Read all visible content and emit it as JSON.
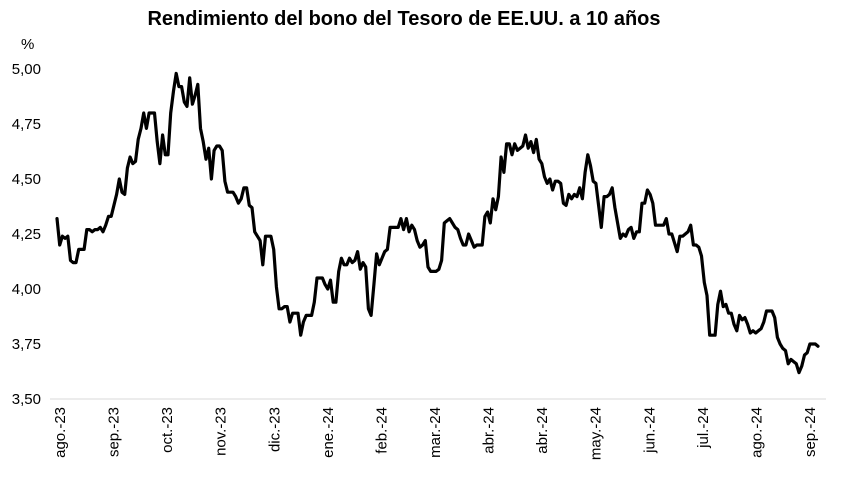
{
  "chart_data": {
    "type": "line",
    "title": "Rendimiento del bono del Tesoro de EE.UU. a 10 años",
    "ylabel": "%",
    "xlabel": "",
    "ylim": [
      3.5,
      5.0
    ],
    "yticks": [
      "3,50",
      "3,75",
      "4,00",
      "4,25",
      "4,50",
      "4,75",
      "5,00"
    ],
    "ytick_values": [
      3.5,
      3.75,
      4.0,
      4.25,
      4.5,
      4.75,
      5.0
    ],
    "xtick_labels": [
      "ago.-23",
      "sep.-23",
      "oct.-23",
      "nov.-23",
      "dic.-23",
      "ene.-24",
      "feb.-24",
      "mar.-24",
      "abr.-24",
      "abr.-24",
      "may.-24",
      "jun.-24",
      "jul.-24",
      "ago.-24",
      "sep.-24"
    ],
    "grid": false,
    "legend": "none",
    "line_color": "#000000",
    "series": [
      {
        "values": [
          4.32,
          4.2,
          4.24,
          4.23,
          4.24,
          4.13,
          4.12,
          4.12,
          4.18,
          4.18,
          4.18,
          4.27,
          4.27,
          4.26,
          4.27,
          4.27,
          4.28,
          4.26,
          4.29,
          4.33,
          4.33,
          4.38,
          4.43,
          4.5,
          4.44,
          4.43,
          4.55,
          4.6,
          4.57,
          4.58,
          4.68,
          4.73,
          4.8,
          4.73,
          4.8,
          4.8,
          4.8,
          4.67,
          4.57,
          4.7,
          4.61,
          4.61,
          4.8,
          4.9,
          4.98,
          4.92,
          4.92,
          4.85,
          4.83,
          4.96,
          4.84,
          4.88,
          4.93,
          4.73,
          4.67,
          4.59,
          4.64,
          4.5,
          4.63,
          4.65,
          4.65,
          4.63,
          4.49,
          4.44,
          4.44,
          4.44,
          4.42,
          4.39,
          4.41,
          4.46,
          4.46,
          4.38,
          4.37,
          4.26,
          4.24,
          4.22,
          4.11,
          4.24,
          4.24,
          4.24,
          4.18,
          4.01,
          3.91,
          3.91,
          3.92,
          3.92,
          3.85,
          3.89,
          3.89,
          3.89,
          3.79,
          3.85,
          3.88,
          3.88,
          3.88,
          3.94,
          4.05,
          4.05,
          4.05,
          4.02,
          4.0,
          4.04,
          3.94,
          3.94,
          4.08,
          4.14,
          4.11,
          4.11,
          4.14,
          4.12,
          4.13,
          4.17,
          4.09,
          4.12,
          4.1,
          3.91,
          3.88,
          4.02,
          4.16,
          4.11,
          4.14,
          4.17,
          4.18,
          4.28,
          4.28,
          4.28,
          4.28,
          4.32,
          4.27,
          4.32,
          4.26,
          4.29,
          4.27,
          4.22,
          4.19,
          4.2,
          4.22,
          4.1,
          4.08,
          4.08,
          4.08,
          4.09,
          4.13,
          4.3,
          4.31,
          4.32,
          4.3,
          4.28,
          4.27,
          4.23,
          4.2,
          4.2,
          4.25,
          4.22,
          4.19,
          4.2,
          4.2,
          4.2,
          4.33,
          4.35,
          4.3,
          4.41,
          4.36,
          4.42,
          4.6,
          4.53,
          4.66,
          4.66,
          4.61,
          4.66,
          4.63,
          4.64,
          4.65,
          4.7,
          4.64,
          4.67,
          4.62,
          4.68,
          4.59,
          4.57,
          4.51,
          4.48,
          4.5,
          4.45,
          4.49,
          4.49,
          4.48,
          4.39,
          4.38,
          4.43,
          4.41,
          4.43,
          4.42,
          4.46,
          4.41,
          4.53,
          4.61,
          4.56,
          4.49,
          4.48,
          4.38,
          4.28,
          4.42,
          4.42,
          4.43,
          4.46,
          4.37,
          4.3,
          4.23,
          4.25,
          4.24,
          4.27,
          4.28,
          4.23,
          4.26,
          4.26,
          4.39,
          4.39,
          4.45,
          4.43,
          4.39,
          4.29,
          4.29,
          4.29,
          4.29,
          4.32,
          4.25,
          4.25,
          4.21,
          4.17,
          4.24,
          4.24,
          4.25,
          4.26,
          4.29,
          4.2,
          4.2,
          4.19,
          4.15,
          4.03,
          3.97,
          3.79,
          3.79,
          3.79,
          3.93,
          3.99,
          3.92,
          3.93,
          3.89,
          3.89,
          3.84,
          3.81,
          3.88,
          3.86,
          3.87,
          3.84,
          3.8,
          3.81,
          3.8,
          3.81,
          3.82,
          3.85,
          3.9,
          3.9,
          3.9,
          3.87,
          3.78,
          3.75,
          3.73,
          3.72,
          3.66,
          3.68,
          3.67,
          3.66,
          3.62,
          3.65,
          3.7,
          3.71,
          3.75,
          3.75,
          3.75,
          3.74
        ]
      }
    ]
  }
}
